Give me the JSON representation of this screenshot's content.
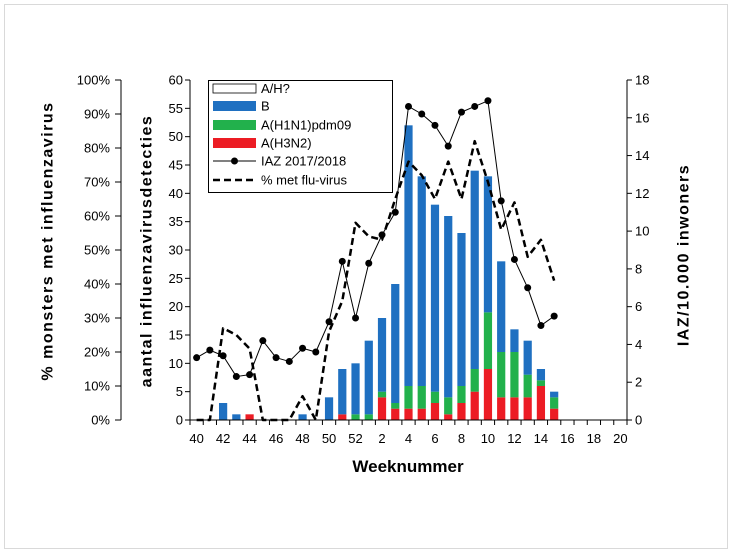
{
  "chart_data": {
    "type": "bar",
    "x": [
      40,
      41,
      42,
      43,
      44,
      45,
      46,
      47,
      48,
      49,
      50,
      51,
      52,
      1,
      2,
      3,
      4,
      5,
      6,
      7,
      8,
      9,
      10,
      11,
      12,
      13,
      14,
      15,
      16,
      17,
      18,
      19,
      20
    ],
    "x_tick_labels": [
      "40",
      "42",
      "44",
      "46",
      "48",
      "50",
      "52",
      "2",
      "4",
      "6",
      "8",
      "10",
      "12",
      "14",
      "16",
      "18",
      "20"
    ],
    "xlabel": "Weeknummer",
    "y_axes": {
      "pct": {
        "label": "% monsters met influenzavirus",
        "range": [
          0,
          100
        ],
        "tick_labels": [
          "0%",
          "10%",
          "20%",
          "30%",
          "40%",
          "50%",
          "60%",
          "70%",
          "80%",
          "90%",
          "100%"
        ]
      },
      "count": {
        "label": "aantal influenzavirusdetecties",
        "range": [
          0,
          60
        ],
        "tick_labels": [
          "0",
          "5",
          "10",
          "15",
          "20",
          "25",
          "30",
          "35",
          "40",
          "45",
          "50",
          "55",
          "60"
        ]
      },
      "iaz": {
        "label": "IAZ/10.000 inwoners",
        "range": [
          0,
          18
        ],
        "tick_labels": [
          "0",
          "2",
          "4",
          "6",
          "8",
          "10",
          "12",
          "14",
          "16",
          "18"
        ]
      }
    },
    "stacked_bars": [
      {
        "name": "A/H?",
        "color": "#ffffff",
        "values": [
          0,
          0,
          0,
          0,
          0,
          0,
          0,
          0,
          0,
          0,
          0,
          0,
          0,
          0,
          0,
          0,
          0,
          0,
          0,
          0,
          0,
          0,
          0,
          0,
          0,
          0,
          0,
          0,
          0,
          0,
          0,
          0,
          0
        ]
      },
      {
        "name": "B",
        "color": "#1f70c1",
        "values": [
          0,
          0,
          3,
          1,
          0,
          0,
          0,
          0,
          1,
          0,
          4,
          8,
          9,
          13,
          13,
          21,
          46,
          37,
          33,
          32,
          27,
          35,
          24,
          16,
          4,
          6,
          2,
          1,
          0,
          0,
          0,
          0,
          0
        ]
      },
      {
        "name": "A(H1N1)pdm09",
        "color": "#22b14c",
        "values": [
          0,
          0,
          0,
          0,
          0,
          0,
          0,
          0,
          0,
          0,
          0,
          0,
          1,
          1,
          1,
          1,
          4,
          4,
          2,
          3,
          3,
          4,
          10,
          8,
          8,
          4,
          1,
          2,
          0,
          0,
          0,
          0,
          0
        ]
      },
      {
        "name": "A(H3N2)",
        "color": "#ec1c24",
        "values": [
          0,
          0,
          0,
          0,
          1,
          0,
          0,
          0,
          0,
          0,
          0,
          1,
          0,
          0,
          4,
          2,
          2,
          2,
          3,
          1,
          3,
          5,
          9,
          4,
          4,
          4,
          6,
          2,
          0,
          0,
          0,
          0,
          0
        ]
      }
    ],
    "lines": {
      "iaz": {
        "name": "IAZ 2017/2018",
        "color": "#000000",
        "markers": true,
        "values": [
          3.3,
          3.7,
          3.4,
          2.3,
          2.4,
          4.2,
          3.3,
          3.1,
          3.8,
          3.6,
          5.2,
          8.4,
          5.4,
          8.3,
          9.8,
          11.0,
          16.6,
          16.2,
          15.6,
          14.5,
          16.3,
          16.6,
          16.9,
          11.6,
          8.5,
          7.0,
          5.0,
          5.5,
          null,
          null,
          null,
          null,
          null
        ]
      },
      "pct": {
        "name": "% met flu-virus",
        "color": "#000000",
        "dashed": true,
        "values": [
          0,
          0,
          27,
          25,
          21,
          0,
          0,
          0,
          7,
          0,
          26,
          35,
          58,
          54,
          53,
          65,
          76,
          72,
          65,
          76,
          65,
          82,
          70,
          56,
          64,
          48,
          53,
          41,
          null,
          null,
          null,
          null,
          null
        ]
      }
    },
    "legend": "top-left",
    "grid": false
  }
}
